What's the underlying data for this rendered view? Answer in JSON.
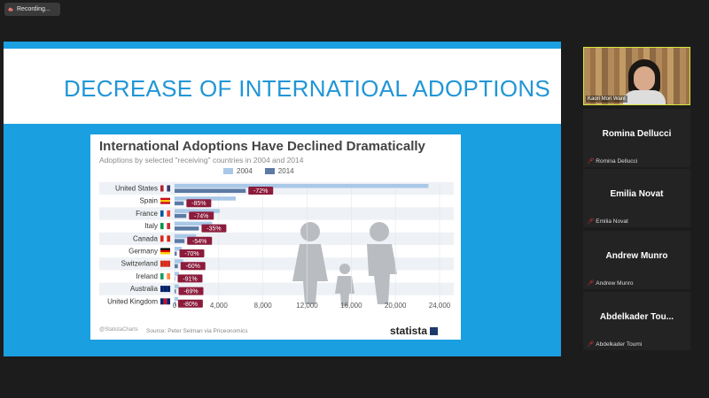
{
  "recording": {
    "label": "Recording..."
  },
  "slide": {
    "title": "DECREASE OF INTERNATIOAL ADOPTIONS"
  },
  "chart": {
    "title": "International Adoptions Have Declined Dramatically",
    "subtitle": "Adoptions by selected \"receiving\" countries in 2004 and 2014",
    "footer_handle": "@StatistaCharts",
    "source": "Source: Peter Selman via Priceonomics",
    "brand": "statista"
  },
  "chart_data": {
    "type": "bar",
    "orientation": "horizontal",
    "categories": [
      "United States",
      "Spain",
      "France",
      "Italy",
      "Canada",
      "Germany",
      "Switzerland",
      "Ireland",
      "Australia",
      "United Kingdom"
    ],
    "series": [
      {
        "name": "2004",
        "color": "#a9c8e8",
        "values": [
          22990,
          5540,
          4080,
          3400,
          1950,
          650,
          770,
          400,
          380,
          330
        ]
      },
      {
        "name": "2014",
        "color": "#5b7aa5",
        "values": [
          6440,
          830,
          1060,
          2200,
          900,
          200,
          300,
          40,
          120,
          70
        ]
      }
    ],
    "change_labels": [
      "-72%",
      "-85%",
      "-74%",
      "-35%",
      "-54%",
      "-70%",
      "-60%",
      "-91%",
      "-69%",
      "-80%"
    ],
    "xticks": [
      "0",
      "4,000",
      "8,000",
      "12,000",
      "16,000",
      "20,000",
      "24,000"
    ],
    "xlim": [
      0,
      24000
    ],
    "legend_position": "top"
  },
  "participants": {
    "active": {
      "name": "Kaori Mori Want"
    },
    "list": [
      {
        "name": "Romina Dellucci"
      },
      {
        "name": "Emilia Novat"
      },
      {
        "name": "Andrew Munro"
      },
      {
        "name": "Abdelkader  Tou...",
        "small": "Abdelkader Toumi"
      }
    ]
  },
  "colors": {
    "slide_bg": "#1a9fe0",
    "title": "#2196d6",
    "badge": "#8c1c3c",
    "active_border": "#d8e83a"
  }
}
